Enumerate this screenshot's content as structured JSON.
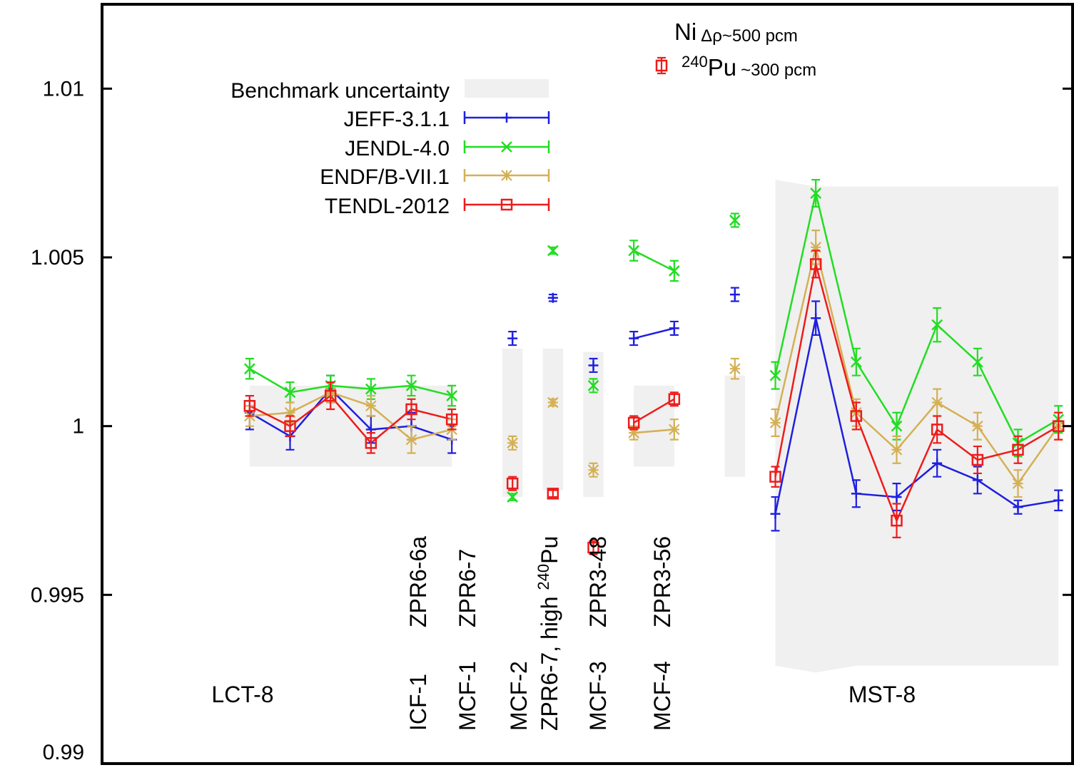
{
  "chart_data": {
    "type": "line",
    "title": "",
    "xlabel": "",
    "ylabel": "",
    "ylim": [
      0.99,
      1.0125
    ],
    "yticks": [
      "0.99",
      "0.995",
      "1",
      "1.005",
      "1.01"
    ],
    "yticks_values": [
      0.99,
      0.995,
      1.0,
      1.005,
      1.01
    ],
    "legend": {
      "placement": "top-left",
      "entries": [
        "Benchmark uncertainty",
        "JEFF-3.1.1",
        "JENDL-4.0",
        "ENDF/B-VII.1",
        "TENDL-2012"
      ]
    },
    "annotations": {
      "ni_label": "Ni",
      "ni_note": "Δρ~500 pcm",
      "pu_sup": "240",
      "pu_label": "Pu",
      "pu_note": "~300 pcm",
      "group_labels": {
        "lct8": "LCT-8",
        "mst8": "MST-8",
        "icf1": "ICF-1",
        "mcf1": "MCF-1",
        "mcf2": "MCF-2",
        "mcf3": "MCF-3",
        "mcf4": "MCF-4",
        "zpr6_6a": "ZPR6-6a",
        "zpr6_7": "ZPR6-7",
        "zpr6_7_high_pre": "ZPR6-7, high ",
        "zpr6_7_high_sup": "240",
        "zpr6_7_high_post": "Pu",
        "zpr3_48": "ZPR3-48",
        "zpr3_56": "ZPR3-56"
      }
    },
    "colors": {
      "JEFF-3.1.1": "#1f1fe0",
      "JENDL-4.0": "#22dd22",
      "ENDF/B-VII.1": "#d4b055",
      "TENDL-2012": "#ee1c1c",
      "Benchmark uncertainty": "#f0f0f0"
    },
    "bands": [
      {
        "group": "LCT-8",
        "x": [
          1,
          2,
          3,
          4,
          5,
          6
        ],
        "lower": [
          0.9988,
          0.9988,
          0.9988,
          0.9988,
          0.9988,
          0.9988
        ],
        "upper": [
          1.0012,
          1.0012,
          1.0012,
          1.0012,
          1.0012,
          1.0012
        ]
      },
      {
        "group": "ICF-1",
        "x": [
          7.5
        ],
        "width": 0.5,
        "lower": [
          0.9979
        ],
        "upper": [
          1.0023
        ]
      },
      {
        "group": "MCF-1",
        "x": [
          8.5
        ],
        "width": 0.5,
        "lower": [
          0.9981
        ],
        "upper": [
          1.0023
        ]
      },
      {
        "group": "MCF-2",
        "x": [
          9.5
        ],
        "width": 0.5,
        "lower": [
          0.9979
        ],
        "upper": [
          1.0022
        ]
      },
      {
        "group": "MCF-3",
        "x": [
          10.5,
          11.5
        ],
        "lower": [
          0.9988,
          0.9988
        ],
        "upper": [
          1.0012,
          1.0012
        ]
      },
      {
        "group": "MCF-4",
        "x": [
          13.0
        ],
        "width": 0.5,
        "lower": [
          0.9985
        ],
        "upper": [
          1.0015
        ]
      },
      {
        "group": "MST-8",
        "x": [
          14,
          15,
          16,
          17,
          18,
          19,
          20,
          21
        ],
        "lower": [
          0.9929,
          0.9927,
          0.9929,
          0.9929,
          0.9929,
          0.9929,
          0.9929,
          0.9929
        ],
        "upper": [
          1.0073,
          1.0071,
          1.0071,
          1.0071,
          1.0071,
          1.0071,
          1.0071,
          1.0071
        ]
      }
    ],
    "series": [
      {
        "name": "JEFF-3.1.1",
        "marker": "plus",
        "points": [
          {
            "x": 1,
            "y": 1.0004,
            "err": 0.0005
          },
          {
            "x": 2,
            "y": 0.9997,
            "err": 0.0004
          },
          {
            "x": 3,
            "y": 1.0011,
            "err": 0.0004
          },
          {
            "x": 4,
            "y": 0.9999,
            "err": 0.0004
          },
          {
            "x": 5,
            "y": 1.0,
            "err": 0.0004
          },
          {
            "x": 6,
            "y": 0.9996,
            "err": 0.0004
          },
          {
            "x": 7.5,
            "y": 1.0026,
            "err": 0.0002
          },
          {
            "x": 8.5,
            "y": 1.0038,
            "err": 0.0001
          },
          {
            "x": 9.5,
            "y": 1.0018,
            "err": 0.0002
          },
          {
            "x": 10.5,
            "y": 1.0026,
            "err": 0.0002
          },
          {
            "x": 11.5,
            "y": 1.0029,
            "err": 0.0002
          },
          {
            "x": 13.0,
            "y": 1.0039,
            "err": 0.0002
          },
          {
            "x": 14,
            "y": 0.9974,
            "err": 0.0005
          },
          {
            "x": 15,
            "y": 1.0032,
            "err": 0.0005
          },
          {
            "x": 16,
            "y": 0.998,
            "err": 0.0004
          },
          {
            "x": 17,
            "y": 0.9979,
            "err": 0.0004
          },
          {
            "x": 18,
            "y": 0.9989,
            "err": 0.0004
          },
          {
            "x": 19,
            "y": 0.9984,
            "err": 0.0004
          },
          {
            "x": 20,
            "y": 0.9976,
            "err": 0.0002
          },
          {
            "x": 21,
            "y": 0.9978,
            "err": 0.0003
          }
        ],
        "line_segments": [
          [
            1,
            2,
            3,
            4,
            5,
            6
          ],
          [
            10.5,
            11.5
          ],
          [
            14,
            15,
            16,
            17,
            18,
            19,
            20,
            21
          ]
        ]
      },
      {
        "name": "JENDL-4.0",
        "marker": "x",
        "points": [
          {
            "x": 1,
            "y": 1.0017,
            "err": 0.0003
          },
          {
            "x": 2,
            "y": 1.001,
            "err": 0.0003
          },
          {
            "x": 3,
            "y": 1.0012,
            "err": 0.0003
          },
          {
            "x": 4,
            "y": 1.0011,
            "err": 0.0003
          },
          {
            "x": 5,
            "y": 1.0012,
            "err": 0.0003
          },
          {
            "x": 6,
            "y": 1.0009,
            "err": 0.0003
          },
          {
            "x": 7.5,
            "y": 0.9979,
            "err": 0.0001
          },
          {
            "x": 8.5,
            "y": 1.0052,
            "err": 0.0001
          },
          {
            "x": 9.5,
            "y": 1.0012,
            "err": 0.0002
          },
          {
            "x": 10.5,
            "y": 1.0052,
            "err": 0.0003
          },
          {
            "x": 11.5,
            "y": 1.0046,
            "err": 0.0003
          },
          {
            "x": 13.0,
            "y": 1.0061,
            "err": 0.0002
          },
          {
            "x": 14,
            "y": 1.0015,
            "err": 0.0004
          },
          {
            "x": 15,
            "y": 1.0069,
            "err": 0.0004
          },
          {
            "x": 16,
            "y": 1.0019,
            "err": 0.0004
          },
          {
            "x": 17,
            "y": 1.0,
            "err": 0.0004
          },
          {
            "x": 18,
            "y": 1.003,
            "err": 0.0005
          },
          {
            "x": 19,
            "y": 1.0019,
            "err": 0.0004
          },
          {
            "x": 20,
            "y": 0.9995,
            "err": 0.0004
          },
          {
            "x": 21,
            "y": 1.0002,
            "err": 0.0004
          }
        ],
        "line_segments": [
          [
            1,
            2,
            3,
            4,
            5,
            6
          ],
          [
            10.5,
            11.5
          ],
          [
            14,
            15,
            16,
            17,
            18,
            19,
            20,
            21
          ]
        ]
      },
      {
        "name": "ENDF/B-VII.1",
        "marker": "star",
        "points": [
          {
            "x": 1,
            "y": 1.0003,
            "err": 0.0003
          },
          {
            "x": 2,
            "y": 1.0004,
            "err": 0.0003
          },
          {
            "x": 3,
            "y": 1.001,
            "err": 0.0003
          },
          {
            "x": 4,
            "y": 1.0006,
            "err": 0.0003
          },
          {
            "x": 5,
            "y": 0.9996,
            "err": 0.0004
          },
          {
            "x": 6,
            "y": 0.9999,
            "err": 0.0003
          },
          {
            "x": 7.5,
            "y": 0.9995,
            "err": 0.0002
          },
          {
            "x": 8.5,
            "y": 1.0007,
            "err": 0.0001
          },
          {
            "x": 9.5,
            "y": 0.9987,
            "err": 0.0002
          },
          {
            "x": 10.5,
            "y": 0.9998,
            "err": 0.0002
          },
          {
            "x": 11.5,
            "y": 0.9999,
            "err": 0.0003
          },
          {
            "x": 13.0,
            "y": 1.0017,
            "err": 0.0003
          },
          {
            "x": 14,
            "y": 1.0001,
            "err": 0.0004
          },
          {
            "x": 15,
            "y": 1.0053,
            "err": 0.0005
          },
          {
            "x": 16,
            "y": 1.0004,
            "err": 0.0004
          },
          {
            "x": 17,
            "y": 0.9993,
            "err": 0.0004
          },
          {
            "x": 18,
            "y": 1.0007,
            "err": 0.0004
          },
          {
            "x": 19,
            "y": 1.0,
            "err": 0.0004
          },
          {
            "x": 20,
            "y": 0.9983,
            "err": 0.0004
          },
          {
            "x": 21,
            "y": 1.0,
            "err": 0.0004
          }
        ],
        "line_segments": [
          [
            1,
            2,
            3,
            4,
            5,
            6
          ],
          [
            10.5,
            11.5
          ],
          [
            14,
            15,
            16,
            17,
            18,
            19,
            20,
            21
          ]
        ]
      },
      {
        "name": "TENDL-2012",
        "marker": "square",
        "points": [
          {
            "x": 1,
            "y": 1.0006,
            "err": 0.0003
          },
          {
            "x": 2,
            "y": 1.0,
            "err": 0.0003
          },
          {
            "x": 3,
            "y": 1.0009,
            "err": 0.0004
          },
          {
            "x": 4,
            "y": 0.9995,
            "err": 0.0003
          },
          {
            "x": 5,
            "y": 1.0005,
            "err": 0.0003
          },
          {
            "x": 6,
            "y": 1.0002,
            "err": 0.0003
          },
          {
            "x": 7.5,
            "y": 0.9983,
            "err": 0.0002
          },
          {
            "x": 8.5,
            "y": 0.998,
            "err": 0.0001
          },
          {
            "x": 9.5,
            "y": 0.9964,
            "err": 0.0002
          },
          {
            "x": 10.5,
            "y": 1.0001,
            "err": 0.0002
          },
          {
            "x": 11.5,
            "y": 1.0008,
            "err": 0.0002
          },
          {
            "x": 14,
            "y": 0.9985,
            "err": 0.0003
          },
          {
            "x": 15,
            "y": 1.0048,
            "err": 0.0004
          },
          {
            "x": 16,
            "y": 1.0003,
            "err": 0.0004
          },
          {
            "x": 17,
            "y": 0.9972,
            "err": 0.0005
          },
          {
            "x": 18,
            "y": 0.9999,
            "err": 0.0004
          },
          {
            "x": 19,
            "y": 0.999,
            "err": 0.0004
          },
          {
            "x": 20,
            "y": 0.9993,
            "err": 0.0004
          },
          {
            "x": 21,
            "y": 1.0,
            "err": 0.0004
          }
        ],
        "line_segments": [
          [
            1,
            2,
            3,
            4,
            5,
            6
          ],
          [
            10.5,
            11.5
          ],
          [
            14,
            15,
            16,
            17,
            18,
            19,
            20,
            21
          ]
        ]
      }
    ]
  }
}
